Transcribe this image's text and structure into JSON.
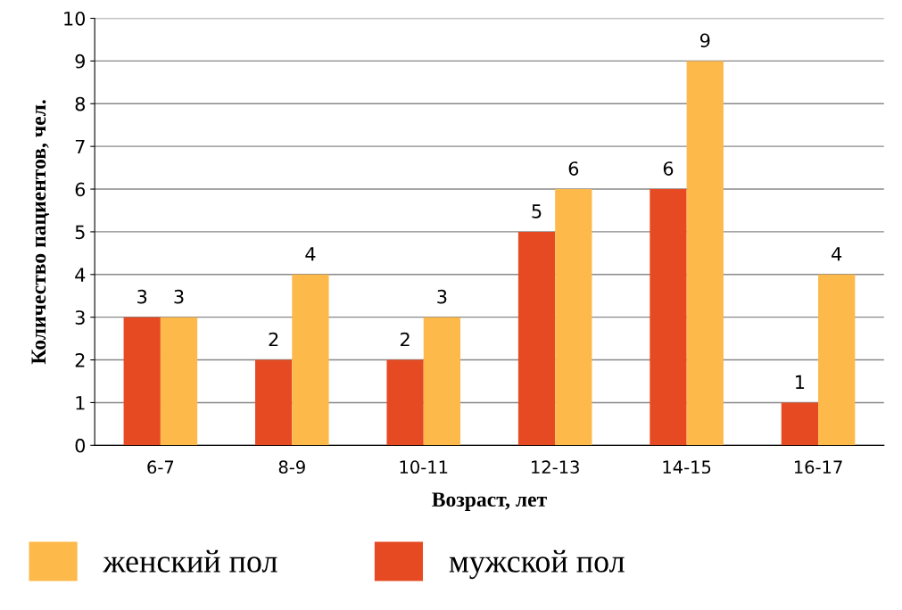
{
  "chart_data": {
    "type": "bar",
    "xlabel": "Возраст, лет",
    "ylabel": "Количество пациентов, чел.",
    "categories": [
      "6-7",
      "8-9",
      "10-11",
      "12-13",
      "14-15",
      "16-17"
    ],
    "series": [
      {
        "name": "мужской пол",
        "color": "#e64a22",
        "values": [
          3,
          2,
          2,
          5,
          6,
          1
        ]
      },
      {
        "name": "женский пол",
        "color": "#fdb94a",
        "values": [
          3,
          4,
          3,
          6,
          9,
          4
        ]
      }
    ],
    "ylim": [
      0,
      10
    ],
    "yticks": [
      0,
      1,
      2,
      3,
      4,
      5,
      6,
      7,
      8,
      9,
      10
    ],
    "grid": "y",
    "legend": "bottom left",
    "data_labels": true
  }
}
